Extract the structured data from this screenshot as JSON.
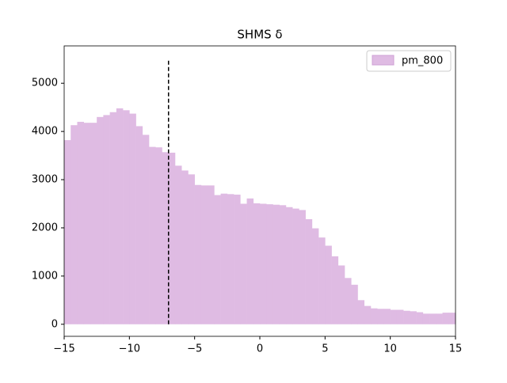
{
  "chart_data": {
    "type": "histogram",
    "title": "SHMS δ",
    "bins": [
      -15,
      -14.5,
      -14,
      -13.5,
      -13,
      -12.5,
      -12,
      -11.5,
      -11,
      -10.5,
      -10,
      -9.5,
      -9,
      -8.5,
      -8,
      -7.5,
      -7,
      -6.5,
      -6,
      -5.5,
      -5,
      -4.5,
      -4,
      -3.5,
      -3,
      -2.5,
      -2,
      -1.5,
      -1,
      -0.5,
      0,
      0.5,
      1,
      1.5,
      2,
      2.5,
      3,
      3.5,
      4,
      4.5,
      5,
      5.5,
      6,
      6.5,
      7,
      7.5,
      8,
      8.5,
      9,
      9.5,
      10,
      10.5,
      11,
      11.5,
      12,
      12.5,
      13,
      13.5,
      14,
      14.5,
      15
    ],
    "series": [
      {
        "name": "pm_800",
        "color": "#dfbbe3",
        "edgecolor": "#cfa0d6",
        "values": [
          3820,
          4130,
          4200,
          4180,
          4180,
          4300,
          4340,
          4400,
          4480,
          4440,
          4370,
          4110,
          3930,
          3680,
          3670,
          3570,
          3560,
          3290,
          3190,
          3110,
          2890,
          2880,
          2880,
          2680,
          2710,
          2700,
          2690,
          2500,
          2610,
          2510,
          2500,
          2490,
          2480,
          2470,
          2430,
          2400,
          2370,
          2180,
          1990,
          1800,
          1630,
          1410,
          1220,
          960,
          820,
          500,
          380,
          330,
          320,
          320,
          300,
          300,
          280,
          270,
          250,
          220,
          220,
          220,
          240,
          240
        ]
      }
    ],
    "vlines": [
      {
        "x": -7,
        "y": [
          0,
          5500
        ],
        "color": "#000000"
      }
    ],
    "xlim": [
      -15,
      15
    ],
    "ylim": [
      -250,
      5775
    ],
    "xticks": [
      {
        "value": -15,
        "label": "−15"
      },
      {
        "value": -10,
        "label": "−10"
      },
      {
        "value": -5,
        "label": "−5"
      },
      0,
      5,
      10,
      15
    ],
    "yticks": [
      0,
      1000,
      2000,
      3000,
      4000,
      5000
    ],
    "legend": "upper right"
  }
}
